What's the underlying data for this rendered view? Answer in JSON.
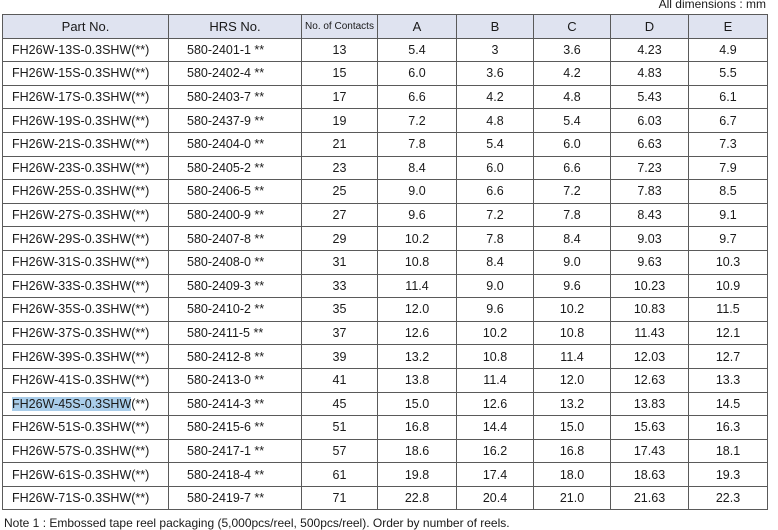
{
  "units_label": "All dimensions : mm",
  "columns": [
    "Part No.",
    "HRS No.",
    "No. of Contacts",
    "A",
    "B",
    "C",
    "D",
    "E"
  ],
  "rows": [
    {
      "part": "FH26W-13S-0.3SHW(**)",
      "hrs": "580-2401-1 **",
      "contacts": "13",
      "a": "5.4",
      "b": "3",
      "c": "3.6",
      "d": "4.23",
      "e": "4.9"
    },
    {
      "part": "FH26W-15S-0.3SHW(**)",
      "hrs": "580-2402-4 **",
      "contacts": "15",
      "a": "6.0",
      "b": "3.6",
      "c": "4.2",
      "d": "4.83",
      "e": "5.5"
    },
    {
      "part": "FH26W-17S-0.3SHW(**)",
      "hrs": "580-2403-7 **",
      "contacts": "17",
      "a": "6.6",
      "b": "4.2",
      "c": "4.8",
      "d": "5.43",
      "e": "6.1"
    },
    {
      "part": "FH26W-19S-0.3SHW(**)",
      "hrs": "580-2437-9 **",
      "contacts": "19",
      "a": "7.2",
      "b": "4.8",
      "c": "5.4",
      "d": "6.03",
      "e": "6.7"
    },
    {
      "part": "FH26W-21S-0.3SHW(**)",
      "hrs": "580-2404-0 **",
      "contacts": "21",
      "a": "7.8",
      "b": "5.4",
      "c": "6.0",
      "d": "6.63",
      "e": "7.3"
    },
    {
      "part": "FH26W-23S-0.3SHW(**)",
      "hrs": "580-2405-2 **",
      "contacts": "23",
      "a": "8.4",
      "b": "6.0",
      "c": "6.6",
      "d": "7.23",
      "e": "7.9"
    },
    {
      "part": "FH26W-25S-0.3SHW(**)",
      "hrs": "580-2406-5 **",
      "contacts": "25",
      "a": "9.0",
      "b": "6.6",
      "c": "7.2",
      "d": "7.83",
      "e": "8.5"
    },
    {
      "part": "FH26W-27S-0.3SHW(**)",
      "hrs": "580-2400-9 **",
      "contacts": "27",
      "a": "9.6",
      "b": "7.2",
      "c": "7.8",
      "d": "8.43",
      "e": "9.1"
    },
    {
      "part": "FH26W-29S-0.3SHW(**)",
      "hrs": "580-2407-8 **",
      "contacts": "29",
      "a": "10.2",
      "b": "7.8",
      "c": "8.4",
      "d": "9.03",
      "e": "9.7"
    },
    {
      "part": "FH26W-31S-0.3SHW(**)",
      "hrs": "580-2408-0 **",
      "contacts": "31",
      "a": "10.8",
      "b": "8.4",
      "c": "9.0",
      "d": "9.63",
      "e": "10.3"
    },
    {
      "part": "FH26W-33S-0.3SHW(**)",
      "hrs": "580-2409-3 **",
      "contacts": "33",
      "a": "11.4",
      "b": "9.0",
      "c": "9.6",
      "d": "10.23",
      "e": "10.9"
    },
    {
      "part": "FH26W-35S-0.3SHW(**)",
      "hrs": "580-2410-2 **",
      "contacts": "35",
      "a": "12.0",
      "b": "9.6",
      "c": "10.2",
      "d": "10.83",
      "e": "11.5"
    },
    {
      "part": "FH26W-37S-0.3SHW(**)",
      "hrs": "580-2411-5 **",
      "contacts": "37",
      "a": "12.6",
      "b": "10.2",
      "c": "10.8",
      "d": "11.43",
      "e": "12.1"
    },
    {
      "part": "FH26W-39S-0.3SHW(**)",
      "hrs": "580-2412-8 **",
      "contacts": "39",
      "a": "13.2",
      "b": "10.8",
      "c": "11.4",
      "d": "12.03",
      "e": "12.7"
    },
    {
      "part": "FH26W-41S-0.3SHW(**)",
      "hrs": "580-2413-0 **",
      "contacts": "41",
      "a": "13.8",
      "b": "11.4",
      "c": "12.0",
      "d": "12.63",
      "e": "13.3"
    },
    {
      "part": "FH26W-45S-0.3SHW(**)",
      "part_selected": "FH26W-45S-0.3SHW",
      "part_rest": "(**)",
      "hrs": "580-2414-3 **",
      "contacts": "45",
      "a": "15.0",
      "b": "12.6",
      "c": "13.2",
      "d": "13.83",
      "e": "14.5"
    },
    {
      "part": "FH26W-51S-0.3SHW(**)",
      "hrs": "580-2415-6 **",
      "contacts": "51",
      "a": "16.8",
      "b": "14.4",
      "c": "15.0",
      "d": "15.63",
      "e": "16.3"
    },
    {
      "part": "FH26W-57S-0.3SHW(**)",
      "hrs": "580-2417-1 **",
      "contacts": "57",
      "a": "18.6",
      "b": "16.2",
      "c": "16.8",
      "d": "17.43",
      "e": "18.1"
    },
    {
      "part": "FH26W-61S-0.3SHW(**)",
      "hrs": "580-2418-4 **",
      "contacts": "61",
      "a": "19.8",
      "b": "17.4",
      "c": "18.0",
      "d": "18.63",
      "e": "19.3"
    },
    {
      "part": "FH26W-71S-0.3SHW(**)",
      "hrs": "580-2419-7 **",
      "contacts": "71",
      "a": "22.8",
      "b": "20.4",
      "c": "21.0",
      "d": "21.63",
      "e": "22.3"
    }
  ],
  "note": "Note 1 : Embossed tape reel packaging (5,000pcs/reel, 500pcs/reel). Order by number of reels.",
  "colors": {
    "header_bg": "#dfe3f0",
    "highlight": "#a9cdea",
    "border": "#5a5a5a"
  }
}
